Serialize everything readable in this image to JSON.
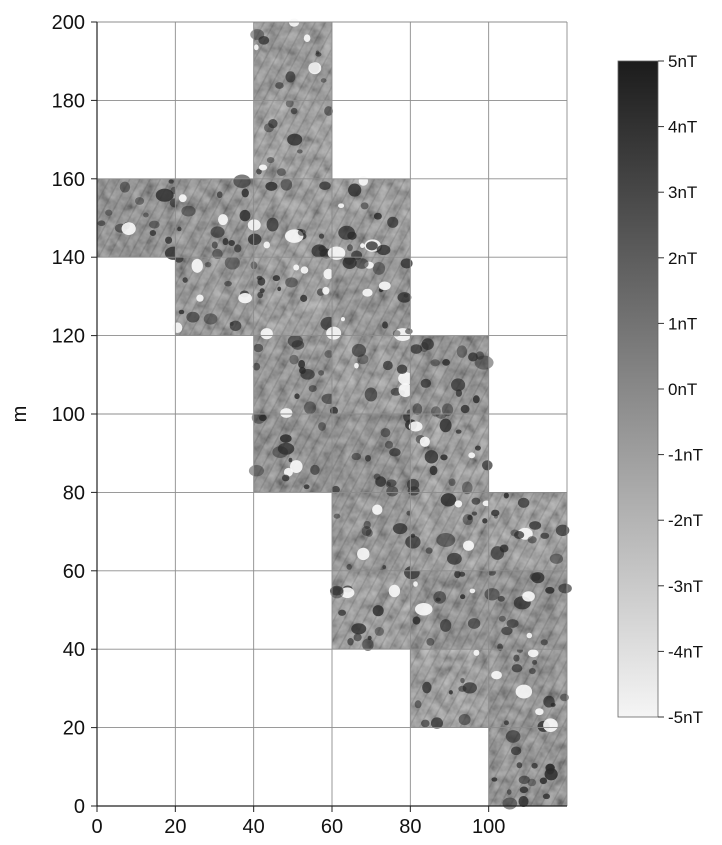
{
  "chart_data": {
    "type": "heatmap",
    "title": "",
    "xlabel": "",
    "ylabel": "m",
    "xlim": [
      0,
      120
    ],
    "ylim": [
      0,
      200
    ],
    "x_ticks": [
      "0",
      "20",
      "40",
      "60",
      "80",
      "100"
    ],
    "y_ticks": [
      "0",
      "20",
      "40",
      "60",
      "80",
      "100",
      "120",
      "140",
      "160",
      "180",
      "200"
    ],
    "grid": true,
    "grid_step": 20,
    "survey_tiles_sw_corner": [
      [
        0,
        140
      ],
      [
        20,
        120
      ],
      [
        20,
        140
      ],
      [
        40,
        80
      ],
      [
        40,
        100
      ],
      [
        40,
        120
      ],
      [
        40,
        140
      ],
      [
        40,
        160
      ],
      [
        40,
        180
      ],
      [
        60,
        40
      ],
      [
        60,
        60
      ],
      [
        60,
        80
      ],
      [
        60,
        100
      ],
      [
        60,
        120
      ],
      [
        60,
        140
      ],
      [
        80,
        20
      ],
      [
        80,
        40
      ],
      [
        80,
        60
      ],
      [
        80,
        80
      ],
      [
        80,
        100
      ],
      [
        100,
        0
      ],
      [
        100,
        20
      ],
      [
        100,
        40
      ],
      [
        100,
        60
      ]
    ],
    "tile_size": 20,
    "colorbar": {
      "range": [
        -5,
        5
      ],
      "unit": "nT",
      "labels": [
        "5nT",
        "4nT",
        "3nT",
        "2nT",
        "1nT",
        "0nT",
        "-1nT",
        "-2nT",
        "-3nT",
        "-4nT",
        "-5nT"
      ],
      "low_color": "#f5f5f5",
      "high_color": "#1c1c1c",
      "placement": "right"
    },
    "palette": {
      "axis": "#222222",
      "grid": "#8c8c8c",
      "data_mid": "#8a8a8a"
    }
  }
}
